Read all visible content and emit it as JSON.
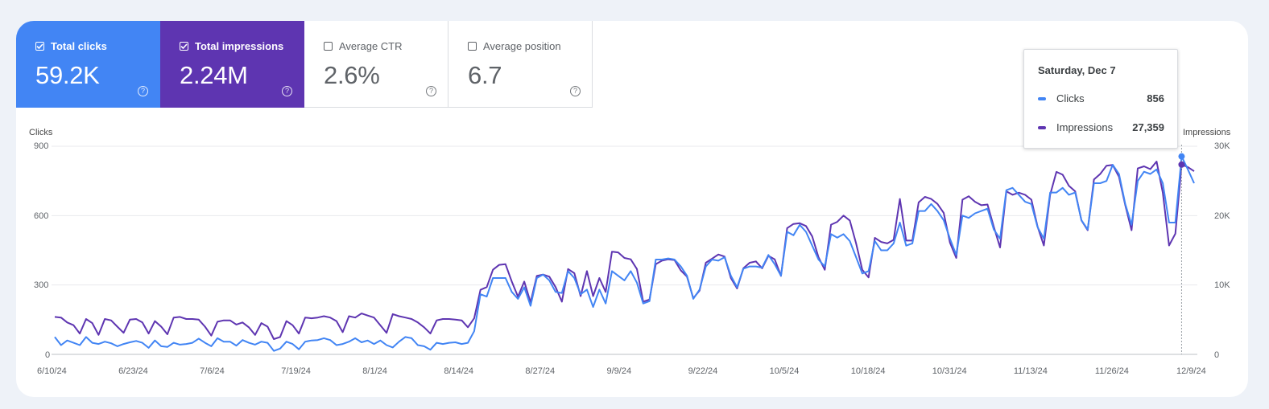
{
  "metrics": [
    {
      "label": "Total clicks",
      "value": "59.2K",
      "checked": true
    },
    {
      "label": "Total impressions",
      "value": "2.24M",
      "checked": true
    },
    {
      "label": "Average CTR",
      "value": "2.6%",
      "checked": false
    },
    {
      "label": "Average position",
      "value": "6.7",
      "checked": false
    }
  ],
  "colors": {
    "clicks": "#4285f4",
    "impressions": "#5e35b1"
  },
  "chart_data": {
    "type": "line",
    "ylabel_left": "Clicks",
    "ylabel_right": "Impressions",
    "ylim_left": [
      0,
      900
    ],
    "ylim_right": [
      0,
      30000
    ],
    "yticks_left": [
      "900",
      "600",
      "300",
      "0"
    ],
    "yticks_right": [
      "30K",
      "20K",
      "10K",
      "0"
    ],
    "xticks": [
      "6/10/24",
      "6/23/24",
      "7/6/24",
      "7/19/24",
      "8/1/24",
      "8/14/24",
      "8/27/24",
      "9/9/24",
      "9/22/24",
      "10/5/24",
      "10/18/24",
      "10/31/24",
      "11/13/24",
      "11/26/24",
      "12/9/24"
    ],
    "grid": true,
    "start_date": "2024-06-10",
    "series": [
      {
        "name": "Clicks",
        "axis": "left",
        "values": [
          75,
          40,
          60,
          50,
          40,
          75,
          50,
          45,
          55,
          48,
          35,
          45,
          52,
          58,
          50,
          28,
          60,
          35,
          32,
          50,
          42,
          45,
          50,
          68,
          50,
          35,
          70,
          55,
          55,
          38,
          62,
          50,
          42,
          55,
          50,
          15,
          25,
          55,
          45,
          22,
          55,
          60,
          62,
          70,
          62,
          40,
          45,
          55,
          70,
          52,
          60,
          45,
          60,
          40,
          30,
          55,
          75,
          70,
          40,
          35,
          20,
          50,
          45,
          50,
          52,
          45,
          50,
          100,
          260,
          250,
          330,
          330,
          330,
          270,
          240,
          290,
          210,
          330,
          345,
          320,
          270,
          265,
          360,
          330,
          260,
          280,
          205,
          280,
          220,
          360,
          340,
          320,
          360,
          310,
          220,
          230,
          410,
          410,
          415,
          410,
          380,
          340,
          240,
          280,
          380,
          410,
          405,
          420,
          340,
          290,
          370,
          380,
          380,
          375,
          430,
          390,
          340,
          530,
          515,
          560,
          530,
          470,
          410,
          380,
          520,
          505,
          520,
          490,
          420,
          350,
          360,
          490,
          450,
          450,
          480,
          570,
          470,
          480,
          620,
          620,
          650,
          620,
          580,
          500,
          430,
          600,
          590,
          610,
          620,
          630,
          540,
          500,
          710,
          720,
          690,
          660,
          650,
          550,
          500,
          700,
          700,
          720,
          690,
          700,
          580,
          540,
          740,
          740,
          750,
          820,
          780,
          650,
          560,
          750,
          790,
          780,
          800,
          740,
          570,
          570,
          856,
          800,
          740
        ]
      },
      {
        "name": "Impressions",
        "axis": "right",
        "values": [
          5400,
          5300,
          4600,
          4200,
          3000,
          5100,
          4500,
          2800,
          5100,
          4900,
          4000,
          3100,
          5000,
          5100,
          4600,
          3000,
          4800,
          4000,
          2900,
          5300,
          5400,
          5100,
          5100,
          5000,
          4000,
          2700,
          4700,
          4900,
          4900,
          4300,
          4600,
          3900,
          2800,
          4500,
          4000,
          2200,
          2500,
          4800,
          4200,
          3000,
          5300,
          5200,
          5300,
          5500,
          5300,
          4800,
          3200,
          5500,
          5300,
          5900,
          5600,
          5300,
          4200,
          3100,
          5800,
          5500,
          5300,
          5100,
          4600,
          3900,
          3000,
          4900,
          5100,
          5100,
          5000,
          4900,
          3900,
          5200,
          9300,
          9700,
          12200,
          12900,
          13000,
          10500,
          8300,
          10500,
          7500,
          11300,
          11500,
          11200,
          9700,
          7600,
          12300,
          11700,
          8400,
          12000,
          8400,
          11000,
          9000,
          14800,
          14700,
          13900,
          13700,
          12300,
          7600,
          7900,
          13000,
          13500,
          13700,
          13600,
          12100,
          11200,
          8100,
          9200,
          13200,
          13800,
          14400,
          14100,
          11000,
          9500,
          12400,
          13200,
          13400,
          12400,
          14200,
          13700,
          11300,
          18200,
          18800,
          18900,
          18500,
          17000,
          14000,
          12200,
          18700,
          19100,
          20000,
          19300,
          16000,
          12200,
          11100,
          16800,
          16200,
          16000,
          16500,
          22400,
          16400,
          16400,
          21900,
          22700,
          22400,
          21700,
          20400,
          16100,
          13900,
          22300,
          22800,
          22000,
          21500,
          21600,
          18400,
          15400,
          23500,
          23000,
          23300,
          23000,
          22300,
          18400,
          15700,
          23000,
          26300,
          25900,
          24300,
          23500,
          19300,
          17900,
          25200,
          26000,
          27200,
          27300,
          25600,
          21500,
          17900,
          26800,
          27100,
          26700,
          27800,
          23300,
          15700,
          17400,
          27359,
          27000,
          26400
        ]
      }
    ],
    "hover": {
      "date": "Saturday, Dec 7",
      "clicks": "856",
      "impressions": "27,359"
    }
  }
}
